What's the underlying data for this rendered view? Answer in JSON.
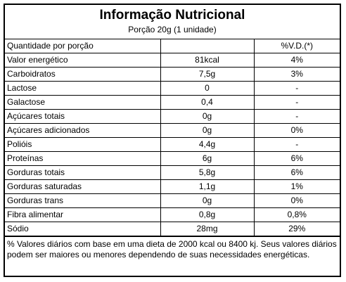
{
  "header": {
    "title": "Informação Nutricional",
    "subtitle": "Porção 20g (1 unidade)"
  },
  "columns": {
    "portion_label": "Quantidade por porção",
    "amount_label": "",
    "vd_label": "%V.D.(*)"
  },
  "rows": [
    {
      "name": "Valor energético",
      "amount": "81kcal",
      "vd": "4%"
    },
    {
      "name": "Carboidratos",
      "amount": "7,5g",
      "vd": "3%"
    },
    {
      "name": "Lactose",
      "amount": "0",
      "vd": "-"
    },
    {
      "name": "Galactose",
      "amount": "0,4",
      "vd": "-"
    },
    {
      "name": "Açúcares totais",
      "amount": "0g",
      "vd": "-"
    },
    {
      "name": "Açúcares adicionados",
      "amount": "0g",
      "vd": "0%"
    },
    {
      "name": "Polióis",
      "amount": "4,4g",
      "vd": "-"
    },
    {
      "name": "Proteínas",
      "amount": "6g",
      "vd": "6%"
    },
    {
      "name": "Gorduras totais",
      "amount": "5,8g",
      "vd": "6%"
    },
    {
      "name": "Gorduras saturadas",
      "amount": "1,1g",
      "vd": "1%"
    },
    {
      "name": "Gorduras trans",
      "amount": "0g",
      "vd": "0%"
    },
    {
      "name": "Fibra alimentar",
      "amount": "0,8g",
      "vd": "0,8%"
    },
    {
      "name": "Sódio",
      "amount": "28mg",
      "vd": "29%"
    }
  ],
  "footnote": "% Valores diários com base em uma dieta de 2000 kcal ou 8400 kj. Seus valores diários podem ser maiores ou menores dependendo de suas necessidades energéticas."
}
